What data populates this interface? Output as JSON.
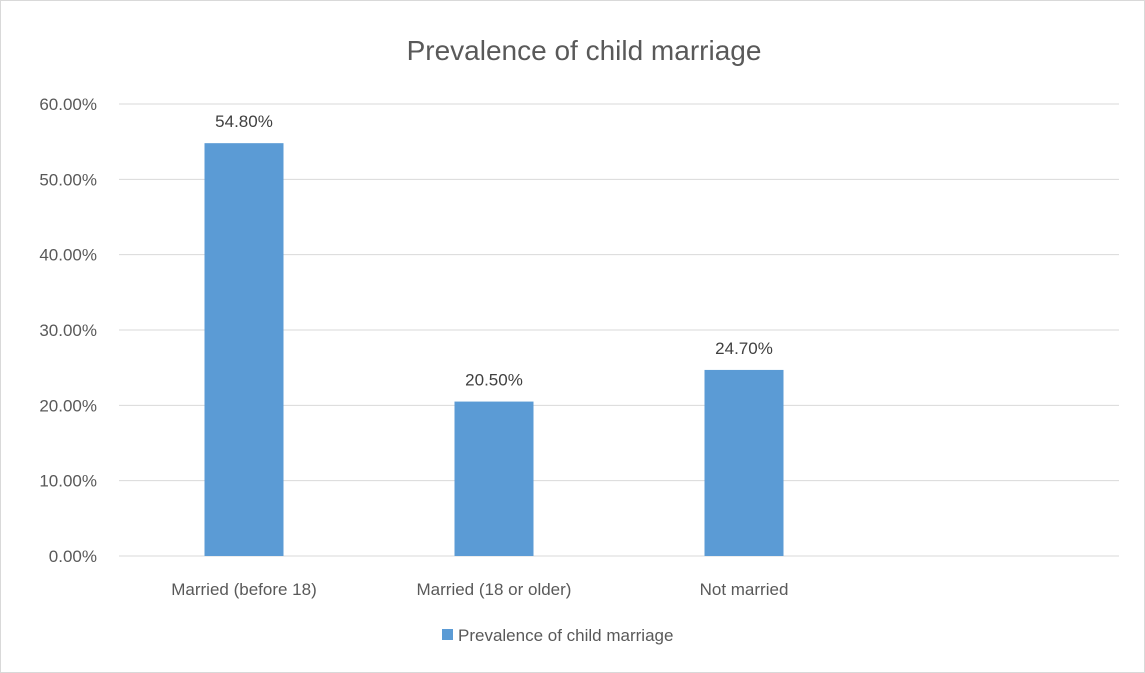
{
  "chart_data": {
    "type": "bar",
    "title": "Prevalence of child marriage",
    "categories": [
      "Married (before 18)",
      "Married (18 or older)",
      "Not married"
    ],
    "series": [
      {
        "name": "Prevalence of child marriage",
        "values": [
          54.8,
          20.5,
          24.7
        ],
        "color": "#5b9bd5"
      }
    ],
    "data_labels": [
      "54.80%",
      "20.50%",
      "24.70%"
    ],
    "y_ticks": [
      "0.00%",
      "10.00%",
      "20.00%",
      "30.00%",
      "40.00%",
      "50.00%",
      "60.00%"
    ],
    "ylim": [
      0,
      60
    ],
    "grid": true,
    "legend_position": "bottom",
    "xlabel": "",
    "ylabel": ""
  }
}
